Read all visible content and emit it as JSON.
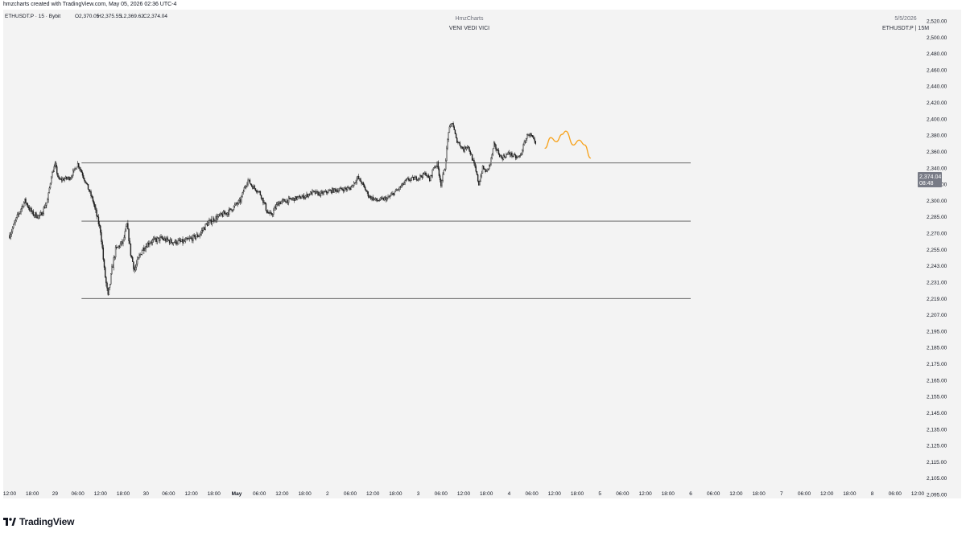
{
  "header": {
    "caption": "hmzcharts created with TradingView.com, May 05, 2026 02:36 UTC-4"
  },
  "chart_info": {
    "symbol": "ETHUSDT.P · 15 · Bybit",
    "open": "O2,370.05",
    "high": "H2,375.55",
    "low": "L2,369.62",
    "close": "C2,374.04"
  },
  "watermark": {
    "author": "HmzCharts",
    "motto": "VENI VEDI VICI"
  },
  "top_right": {
    "date": "5/5/2026",
    "symbol_tf": "ETHUSDT.P | 15M"
  },
  "price_badge": {
    "price": "2,374.04",
    "countdown": "08:48",
    "color": "#787b86"
  },
  "colors": {
    "panel_bg": "#f3f3f3",
    "candles": "#1e1e1e",
    "levels": "#555555",
    "projection": "#f7a21b"
  },
  "footer": {
    "brand": "TradingView",
    "logo_icon": "tradingview-logo-icon"
  },
  "chart_data": {
    "type": "candlestick",
    "symbol": "ETHUSDT.P",
    "timeframe": "15",
    "exchange": "Bybit",
    "y_ticks": [
      2520,
      2500,
      2480,
      2460,
      2440,
      2420,
      2400,
      2380,
      2360,
      2340,
      2320,
      2300,
      2285,
      2270,
      2255,
      2243,
      2231,
      2219,
      2207,
      2195,
      2185,
      2175,
      2165,
      2155,
      2145,
      2135,
      2125,
      2115,
      2105,
      2095
    ],
    "y_tick_labels": [
      "2,520.00",
      "2,500.00",
      "2,480.00",
      "2,460.00",
      "2,440.00",
      "2,420.00",
      "2,400.00",
      "2,380.00",
      "2,360.00",
      "2,340.00",
      "2,320.00",
      "2,300.00",
      "2,285.00",
      "2,270.00",
      "2,255.00",
      "2,243.00",
      "2,231.00",
      "2,219.00",
      "2,207.00",
      "2,195.00",
      "2,185.00",
      "2,175.00",
      "2,165.00",
      "2,155.00",
      "2,145.00",
      "2,135.00",
      "2,125.00",
      "2,115.00",
      "2,105.00",
      "2,095.00"
    ],
    "x_tick_labels": [
      "12:00",
      "18:00",
      "29",
      "06:00",
      "12:00",
      "18:00",
      "30",
      "06:00",
      "12:00",
      "18:00",
      "May",
      "06:00",
      "12:00",
      "18:00",
      "2",
      "06:00",
      "12:00",
      "18:00",
      "3",
      "06:00",
      "12:00",
      "18:00",
      "4",
      "06:00",
      "12:00",
      "18:00",
      "5",
      "06:00",
      "12:00",
      "18:00",
      "6",
      "06:00",
      "12:00",
      "18:00",
      "7",
      "06:00",
      "12:00",
      "18:00",
      "8",
      "06:00",
      "12:00"
    ],
    "x_tick_bold": [
      "May"
    ],
    "x_tick_start_hours": 12,
    "x_tick_step_hours": 6,
    "price_path": [
      {
        "h": 0,
        "p": 2268
      },
      {
        "h": 2,
        "p": 2285
      },
      {
        "h": 4,
        "p": 2300
      },
      {
        "h": 6,
        "p": 2288
      },
      {
        "h": 8,
        "p": 2285
      },
      {
        "h": 10,
        "p": 2300
      },
      {
        "h": 11,
        "p": 2330
      },
      {
        "h": 12,
        "p": 2344
      },
      {
        "h": 13,
        "p": 2325
      },
      {
        "h": 16,
        "p": 2328
      },
      {
        "h": 18,
        "p": 2345
      },
      {
        "h": 19,
        "p": 2335
      },
      {
        "h": 22,
        "p": 2300
      },
      {
        "h": 24,
        "p": 2272
      },
      {
        "h": 25,
        "p": 2240
      },
      {
        "h": 26,
        "p": 2220
      },
      {
        "h": 27,
        "p": 2240
      },
      {
        "h": 28,
        "p": 2255
      },
      {
        "h": 30,
        "p": 2262
      },
      {
        "h": 31,
        "p": 2278
      },
      {
        "h": 32,
        "p": 2252
      },
      {
        "h": 33,
        "p": 2240
      },
      {
        "h": 35,
        "p": 2255
      },
      {
        "h": 37,
        "p": 2262
      },
      {
        "h": 40,
        "p": 2265
      },
      {
        "h": 43,
        "p": 2262
      },
      {
        "h": 46,
        "p": 2262
      },
      {
        "h": 50,
        "p": 2268
      },
      {
        "h": 52,
        "p": 2278
      },
      {
        "h": 54,
        "p": 2283
      },
      {
        "h": 58,
        "p": 2290
      },
      {
        "h": 61,
        "p": 2300
      },
      {
        "h": 62,
        "p": 2315
      },
      {
        "h": 63,
        "p": 2325
      },
      {
        "h": 64,
        "p": 2318
      },
      {
        "h": 66,
        "p": 2310
      },
      {
        "h": 68,
        "p": 2290
      },
      {
        "h": 69,
        "p": 2286
      },
      {
        "h": 71,
        "p": 2298
      },
      {
        "h": 75,
        "p": 2302
      },
      {
        "h": 78,
        "p": 2305
      },
      {
        "h": 80,
        "p": 2310
      },
      {
        "h": 82,
        "p": 2308
      },
      {
        "h": 85,
        "p": 2312
      },
      {
        "h": 90,
        "p": 2315
      },
      {
        "h": 92,
        "p": 2328
      },
      {
        "h": 93,
        "p": 2322
      },
      {
        "h": 95,
        "p": 2305
      },
      {
        "h": 97,
        "p": 2300
      },
      {
        "h": 100,
        "p": 2303
      },
      {
        "h": 103,
        "p": 2315
      },
      {
        "h": 105,
        "p": 2325
      },
      {
        "h": 108,
        "p": 2328
      },
      {
        "h": 110,
        "p": 2333
      },
      {
        "h": 111,
        "p": 2325
      },
      {
        "h": 112,
        "p": 2340
      },
      {
        "h": 113,
        "p": 2345
      },
      {
        "h": 114,
        "p": 2320
      },
      {
        "h": 115,
        "p": 2340
      },
      {
        "h": 116,
        "p": 2385
      },
      {
        "h": 117,
        "p": 2396
      },
      {
        "h": 118,
        "p": 2375
      },
      {
        "h": 120,
        "p": 2362
      },
      {
        "h": 121,
        "p": 2368
      },
      {
        "h": 122,
        "p": 2355
      },
      {
        "h": 123,
        "p": 2340
      },
      {
        "h": 124,
        "p": 2320
      },
      {
        "h": 125,
        "p": 2340
      },
      {
        "h": 126,
        "p": 2335
      },
      {
        "h": 127,
        "p": 2345
      },
      {
        "h": 128,
        "p": 2368
      },
      {
        "h": 129,
        "p": 2360
      },
      {
        "h": 130,
        "p": 2352
      },
      {
        "h": 132,
        "p": 2358
      },
      {
        "h": 134,
        "p": 2352
      },
      {
        "h": 135,
        "p": 2355
      },
      {
        "h": 136,
        "p": 2370
      },
      {
        "h": 137,
        "p": 2382
      },
      {
        "h": 138,
        "p": 2378
      },
      {
        "h": 139,
        "p": 2368
      }
    ],
    "candle_minutes": 15,
    "levels": [
      {
        "price": 2346,
        "from_h": 19,
        "to_h": 180
      },
      {
        "price": 2281,
        "from_h": 19,
        "to_h": 180
      },
      {
        "price": 2219,
        "from_h": 19,
        "to_h": 180
      }
    ],
    "projection": [
      {
        "h": 141.5,
        "p": 2364
      },
      {
        "h": 143,
        "p": 2377
      },
      {
        "h": 144.5,
        "p": 2372
      },
      {
        "h": 146,
        "p": 2381
      },
      {
        "h": 147,
        "p": 2385
      },
      {
        "h": 149,
        "p": 2368
      },
      {
        "h": 150.5,
        "p": 2374
      },
      {
        "h": 152,
        "p": 2368
      },
      {
        "h": 153.5,
        "p": 2352
      }
    ],
    "last_price": 2374.04
  }
}
